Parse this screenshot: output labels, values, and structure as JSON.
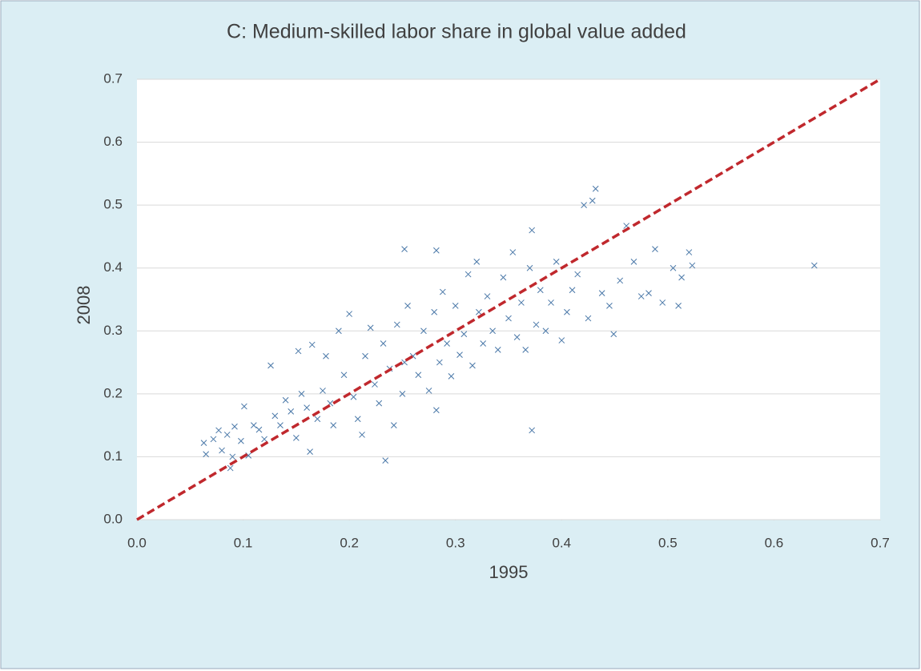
{
  "chart_data": {
    "type": "scatter",
    "title": "C: Medium-skilled labor share in global value added",
    "x_label": "1995",
    "y_label": "2008",
    "xlim": [
      0,
      0.7
    ],
    "ylim": [
      0,
      0.7
    ],
    "xticks": [
      {
        "value": 0,
        "label": "0.0"
      },
      0.1,
      0.2,
      0.3,
      0.4,
      0.5,
      0.6,
      0.7
    ],
    "yticks": [
      {
        "value": 0,
        "label": "0.0"
      },
      0.1,
      0.2,
      0.3,
      0.4,
      0.5,
      0.6,
      0.7
    ],
    "grid": true,
    "series": [
      {
        "type": "scatter",
        "color": "#4a78a8",
        "x": [
          0.063,
          0.065,
          0.072,
          0.077,
          0.08,
          0.085,
          0.088,
          0.092,
          0.098,
          0.101,
          0.105,
          0.11,
          0.115,
          0.12,
          0.126,
          0.13,
          0.135,
          0.14,
          0.145,
          0.15,
          0.152,
          0.155,
          0.16,
          0.163,
          0.165,
          0.17,
          0.175,
          0.178,
          0.182,
          0.185,
          0.19,
          0.195,
          0.2,
          0.204,
          0.208,
          0.212,
          0.215,
          0.22,
          0.224,
          0.228,
          0.232,
          0.234,
          0.238,
          0.242,
          0.245,
          0.25,
          0.252,
          0.255,
          0.26,
          0.265,
          0.27,
          0.275,
          0.28,
          0.282,
          0.285,
          0.288,
          0.292,
          0.296,
          0.3,
          0.304,
          0.308,
          0.312,
          0.316,
          0.32,
          0.322,
          0.326,
          0.33,
          0.335,
          0.34,
          0.345,
          0.35,
          0.354,
          0.358,
          0.362,
          0.366,
          0.37,
          0.372,
          0.372,
          0.376,
          0.38,
          0.385,
          0.39,
          0.395,
          0.4,
          0.405,
          0.41,
          0.415,
          0.421,
          0.425,
          0.429,
          0.432,
          0.438,
          0.445,
          0.449,
          0.455,
          0.461,
          0.468,
          0.475,
          0.482,
          0.488,
          0.495,
          0.505,
          0.51,
          0.513,
          0.52,
          0.523,
          0.638,
          0.252,
          0.282,
          0.09
        ],
        "values": [
          0.122,
          0.104,
          0.128,
          0.142,
          0.11,
          0.135,
          0.082,
          0.148,
          0.125,
          0.18,
          0.102,
          0.15,
          0.143,
          0.128,
          0.245,
          0.165,
          0.15,
          0.19,
          0.172,
          0.13,
          0.268,
          0.2,
          0.178,
          0.108,
          0.278,
          0.16,
          0.205,
          0.26,
          0.185,
          0.15,
          0.3,
          0.23,
          0.327,
          0.195,
          0.16,
          0.135,
          0.26,
          0.305,
          0.215,
          0.185,
          0.28,
          0.094,
          0.24,
          0.15,
          0.31,
          0.2,
          0.43,
          0.34,
          0.26,
          0.23,
          0.3,
          0.205,
          0.33,
          0.174,
          0.25,
          0.362,
          0.28,
          0.228,
          0.34,
          0.262,
          0.295,
          0.39,
          0.245,
          0.41,
          0.33,
          0.28,
          0.355,
          0.3,
          0.27,
          0.385,
          0.32,
          0.425,
          0.29,
          0.345,
          0.27,
          0.4,
          0.46,
          0.142,
          0.31,
          0.365,
          0.3,
          0.345,
          0.41,
          0.285,
          0.33,
          0.365,
          0.39,
          0.5,
          0.32,
          0.507,
          0.526,
          0.36,
          0.34,
          0.295,
          0.38,
          0.467,
          0.41,
          0.355,
          0.36,
          0.43,
          0.345,
          0.4,
          0.34,
          0.385,
          0.425,
          0.404,
          0.404,
          0.25,
          0.428,
          0.1
        ]
      },
      {
        "type": "line",
        "color": "#c0282d",
        "dashed": true,
        "x": [
          0,
          0.7
        ],
        "values": [
          0,
          0.7
        ]
      }
    ]
  }
}
